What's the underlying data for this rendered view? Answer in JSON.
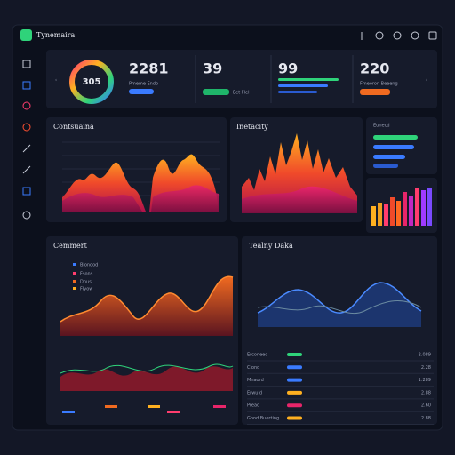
{
  "header": {
    "title": "Tynemaira"
  },
  "kpis": [
    {
      "value": "305"
    },
    {
      "value": "2281",
      "label": "Pmeme Endo"
    },
    {
      "value": "39",
      "label": "Eet Flel"
    },
    {
      "value": "99"
    },
    {
      "value": "220",
      "label": "Fmeoron Beeeng"
    }
  ],
  "panels": {
    "left_top": {
      "title": "Contsuaina"
    },
    "middle_top": {
      "title": "Inetacity"
    },
    "right_top": {
      "title": "Eunecd"
    },
    "bottom_left": {
      "title": "Cemmert",
      "legend": [
        "Blonood",
        "Fsons",
        "Dnus",
        "Flyow"
      ]
    },
    "bottom_right": {
      "title": "Tealny Daka",
      "rows": [
        {
          "label": "Erconeed",
          "value": "2.089"
        },
        {
          "label": "Clond",
          "value": "2.28"
        },
        {
          "label": "Mnaord",
          "value": "1.289"
        },
        {
          "label": "Erwuld",
          "value": "2.88"
        },
        {
          "label": "Pread",
          "value": "2.60"
        },
        {
          "label": "Good Buerting",
          "value": "2.88"
        }
      ]
    }
  }
}
